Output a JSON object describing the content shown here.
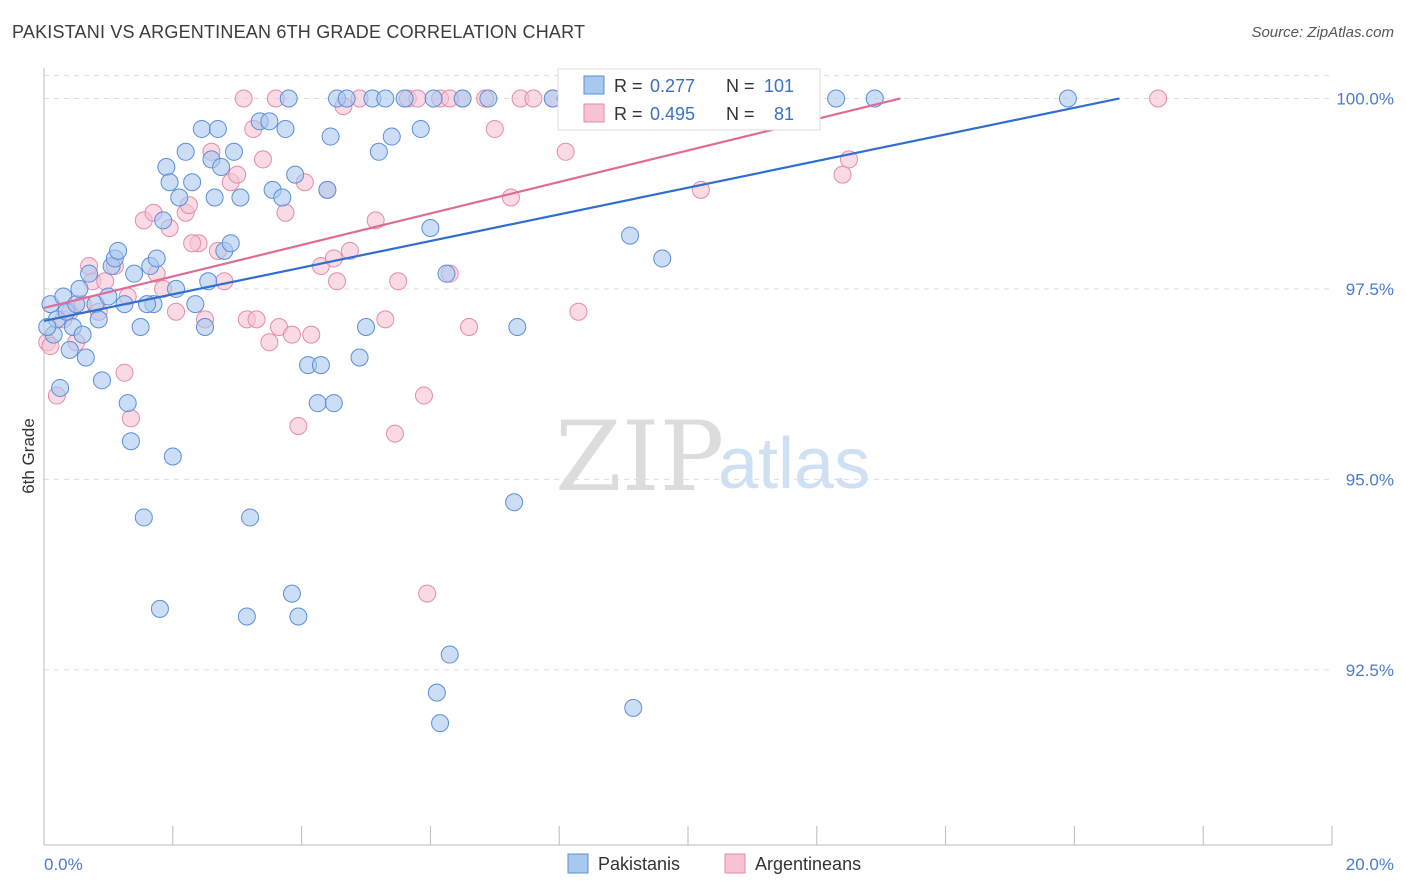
{
  "header": {
    "title": "PAKISTANI VS ARGENTINEAN 6TH GRADE CORRELATION CHART",
    "source": "Source: ZipAtlas.com"
  },
  "watermark": {
    "zip": "ZIP",
    "atlas": "atlas"
  },
  "colors": {
    "pakistani_fill": "#a9c8f0",
    "pakistani_stroke": "#5b8ed8",
    "pakistani_line": "#2f6fcf",
    "argentinean_fill": "#f7c3d4",
    "argentinean_stroke": "#e68aa8",
    "argentinean_line": "#e06b94",
    "tick_color": "#4a7bd0",
    "grid": "#dddddd"
  },
  "stats": {
    "r_label": "R =",
    "n_label": "N =",
    "pakistani": {
      "r": "0.277",
      "n": "101"
    },
    "argentinean": {
      "r": "0.495",
      "n": "81"
    }
  },
  "chart_data": {
    "type": "scatter",
    "title": "PAKISTANI VS ARGENTINEAN 6TH GRADE CORRELATION CHART",
    "xlabel": "",
    "ylabel": "6th Grade",
    "xlim": [
      0,
      20
    ],
    "ylim": [
      90.2,
      100.4
    ],
    "x_tick_labels": [
      "0.0%",
      "20.0%"
    ],
    "y_ticks": [
      92.5,
      95.0,
      97.5,
      100.0
    ],
    "y_tick_labels": [
      "92.5%",
      "95.0%",
      "97.5%",
      "100.0%"
    ],
    "grid": true,
    "legend_position": "bottom-center",
    "series": [
      {
        "name": "Pakistanis",
        "trend": {
          "x": [
            0,
            16.7
          ],
          "y": [
            97.08,
            100.0
          ]
        },
        "points": [
          [
            0.1,
            97.3
          ],
          [
            0.15,
            96.9
          ],
          [
            0.2,
            97.1
          ],
          [
            0.3,
            97.4
          ],
          [
            0.35,
            97.2
          ],
          [
            0.4,
            96.7
          ],
          [
            0.45,
            97.0
          ],
          [
            0.5,
            97.3
          ],
          [
            0.55,
            97.5
          ],
          [
            0.6,
            96.9
          ],
          [
            0.65,
            96.6
          ],
          [
            0.7,
            97.7
          ],
          [
            0.8,
            97.3
          ],
          [
            0.85,
            97.1
          ],
          [
            0.9,
            96.3
          ],
          [
            1.0,
            97.4
          ],
          [
            1.05,
            97.8
          ],
          [
            1.1,
            97.9
          ],
          [
            1.15,
            98.0
          ],
          [
            1.25,
            97.3
          ],
          [
            1.3,
            96.0
          ],
          [
            1.35,
            95.5
          ],
          [
            1.4,
            97.7
          ],
          [
            1.5,
            97.0
          ],
          [
            1.55,
            94.5
          ],
          [
            1.65,
            97.8
          ],
          [
            1.7,
            97.3
          ],
          [
            1.75,
            97.9
          ],
          [
            1.8,
            93.3
          ],
          [
            1.85,
            98.4
          ],
          [
            1.9,
            99.1
          ],
          [
            1.95,
            98.9
          ],
          [
            2.0,
            95.3
          ],
          [
            2.05,
            97.5
          ],
          [
            2.1,
            98.7
          ],
          [
            2.2,
            99.3
          ],
          [
            2.3,
            98.9
          ],
          [
            2.35,
            97.3
          ],
          [
            2.45,
            99.6
          ],
          [
            2.5,
            97.0
          ],
          [
            2.55,
            97.6
          ],
          [
            2.6,
            99.2
          ],
          [
            2.65,
            98.7
          ],
          [
            2.75,
            99.1
          ],
          [
            2.8,
            98.0
          ],
          [
            2.9,
            98.1
          ],
          [
            2.95,
            99.3
          ],
          [
            3.05,
            98.7
          ],
          [
            3.15,
            93.2
          ],
          [
            3.2,
            94.5
          ],
          [
            3.35,
            99.7
          ],
          [
            3.5,
            99.7
          ],
          [
            3.55,
            98.8
          ],
          [
            3.75,
            99.6
          ],
          [
            3.8,
            100.0
          ],
          [
            3.85,
            93.5
          ],
          [
            3.95,
            93.2
          ],
          [
            3.9,
            99.0
          ],
          [
            4.1,
            96.5
          ],
          [
            4.3,
            96.5
          ],
          [
            4.25,
            96.0
          ],
          [
            4.4,
            98.8
          ],
          [
            4.45,
            99.5
          ],
          [
            4.5,
            96.0
          ],
          [
            4.55,
            100.0
          ],
          [
            4.7,
            100.0
          ],
          [
            4.9,
            96.6
          ],
          [
            5.0,
            97.0
          ],
          [
            5.1,
            100.0
          ],
          [
            5.2,
            99.3
          ],
          [
            5.4,
            99.5
          ],
          [
            5.6,
            100.0
          ],
          [
            5.85,
            99.6
          ],
          [
            6.0,
            98.3
          ],
          [
            6.05,
            100.0
          ],
          [
            6.1,
            92.2
          ],
          [
            6.15,
            91.8
          ],
          [
            6.25,
            97.7
          ],
          [
            6.3,
            92.7
          ],
          [
            6.5,
            100.0
          ],
          [
            6.9,
            100.0
          ],
          [
            7.3,
            94.7
          ],
          [
            7.35,
            97.0
          ],
          [
            7.9,
            100.0
          ],
          [
            8.1,
            100.0
          ],
          [
            8.4,
            100.0
          ],
          [
            9.1,
            98.2
          ],
          [
            9.15,
            92.0
          ],
          [
            9.6,
            97.9
          ],
          [
            10.2,
            100.0
          ],
          [
            10.5,
            100.0
          ],
          [
            11.2,
            100.0
          ],
          [
            12.3,
            100.0
          ],
          [
            12.9,
            100.0
          ],
          [
            15.9,
            100.0
          ],
          [
            0.25,
            96.2
          ],
          [
            0.05,
            97.0
          ],
          [
            1.6,
            97.3
          ],
          [
            2.7,
            99.6
          ],
          [
            3.7,
            98.7
          ],
          [
            5.3,
            100.0
          ]
        ]
      },
      {
        "name": "Argentineans",
        "trend": {
          "x": [
            0,
            13.3
          ],
          "y": [
            97.25,
            100.0
          ]
        },
        "points": [
          [
            0.05,
            96.8
          ],
          [
            0.1,
            96.75
          ],
          [
            0.2,
            96.1
          ],
          [
            0.3,
            97.1
          ],
          [
            0.4,
            97.2
          ],
          [
            0.5,
            96.8
          ],
          [
            0.6,
            97.3
          ],
          [
            0.75,
            97.6
          ],
          [
            0.85,
            97.2
          ],
          [
            0.95,
            97.6
          ],
          [
            1.1,
            97.8
          ],
          [
            1.25,
            96.4
          ],
          [
            1.3,
            97.4
          ],
          [
            1.35,
            95.8
          ],
          [
            1.55,
            98.4
          ],
          [
            1.7,
            98.5
          ],
          [
            1.75,
            97.7
          ],
          [
            1.85,
            97.5
          ],
          [
            1.95,
            98.3
          ],
          [
            2.05,
            97.2
          ],
          [
            2.2,
            98.5
          ],
          [
            2.25,
            98.6
          ],
          [
            2.4,
            98.1
          ],
          [
            2.5,
            97.1
          ],
          [
            2.6,
            99.3
          ],
          [
            2.7,
            98.0
          ],
          [
            2.8,
            97.6
          ],
          [
            2.9,
            98.9
          ],
          [
            3.0,
            99.0
          ],
          [
            3.1,
            100.0
          ],
          [
            3.15,
            97.1
          ],
          [
            3.25,
            99.6
          ],
          [
            3.4,
            99.2
          ],
          [
            3.5,
            96.8
          ],
          [
            3.6,
            100.0
          ],
          [
            3.65,
            97.0
          ],
          [
            3.75,
            98.5
          ],
          [
            3.85,
            96.9
          ],
          [
            3.95,
            95.7
          ],
          [
            4.05,
            98.9
          ],
          [
            4.15,
            96.9
          ],
          [
            4.3,
            97.8
          ],
          [
            4.4,
            98.8
          ],
          [
            4.5,
            97.9
          ],
          [
            4.55,
            97.6
          ],
          [
            4.65,
            99.9
          ],
          [
            4.75,
            98.0
          ],
          [
            4.9,
            100.0
          ],
          [
            5.15,
            98.4
          ],
          [
            5.3,
            97.1
          ],
          [
            5.45,
            95.6
          ],
          [
            5.5,
            97.6
          ],
          [
            5.65,
            100.0
          ],
          [
            5.8,
            100.0
          ],
          [
            5.9,
            96.1
          ],
          [
            5.95,
            93.5
          ],
          [
            6.15,
            100.0
          ],
          [
            6.3,
            97.7
          ],
          [
            6.5,
            100.0
          ],
          [
            6.6,
            97.0
          ],
          [
            6.85,
            100.0
          ],
          [
            7.0,
            99.6
          ],
          [
            7.25,
            98.7
          ],
          [
            7.4,
            100.0
          ],
          [
            7.6,
            100.0
          ],
          [
            7.9,
            100.0
          ],
          [
            8.1,
            99.3
          ],
          [
            8.3,
            97.2
          ],
          [
            8.5,
            100.0
          ],
          [
            8.8,
            100.0
          ],
          [
            9.5,
            100.0
          ],
          [
            10.2,
            98.8
          ],
          [
            10.9,
            100.0
          ],
          [
            11.4,
            100.0
          ],
          [
            12.4,
            99.0
          ],
          [
            12.5,
            99.2
          ],
          [
            17.3,
            100.0
          ],
          [
            0.7,
            97.8
          ],
          [
            2.3,
            98.1
          ],
          [
            3.3,
            97.1
          ],
          [
            6.3,
            100.0
          ]
        ]
      }
    ]
  },
  "legend": {
    "items": [
      "Pakistanis",
      "Argentineans"
    ]
  }
}
